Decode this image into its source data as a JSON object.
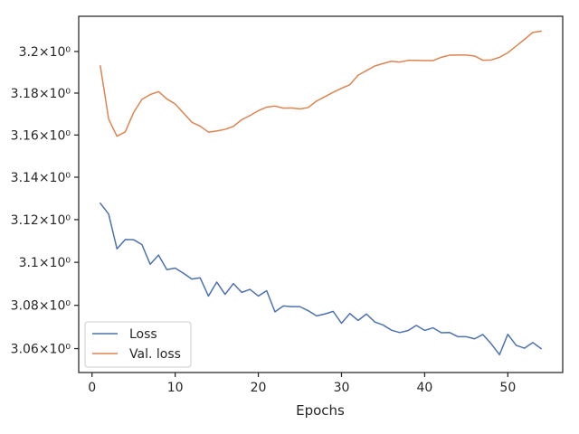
{
  "chart_data": {
    "type": "line",
    "title": "",
    "xlabel": "Epochs",
    "ylabel": "",
    "yscale": "log",
    "grid": false,
    "legend_position": "lower-left",
    "xlim": [
      -1.6,
      56.6
    ],
    "ylim": [
      3.049,
      3.217
    ],
    "x_ticks": [
      {
        "value": 0,
        "label": "0"
      },
      {
        "value": 10,
        "label": "10"
      },
      {
        "value": 20,
        "label": "20"
      },
      {
        "value": 30,
        "label": "30"
      },
      {
        "value": 40,
        "label": "40"
      },
      {
        "value": 50,
        "label": "50"
      }
    ],
    "y_ticks": [
      {
        "value": 3.06,
        "label": "3.06×10⁰"
      },
      {
        "value": 3.08,
        "label": "3.08×10⁰"
      },
      {
        "value": 3.1,
        "label": "3.1×10⁰"
      },
      {
        "value": 3.12,
        "label": "3.12×10⁰"
      },
      {
        "value": 3.14,
        "label": "3.14×10⁰"
      },
      {
        "value": 3.16,
        "label": "3.16×10⁰"
      },
      {
        "value": 3.18,
        "label": "3.18×10⁰"
      },
      {
        "value": 3.2,
        "label": "3.2×10⁰"
      }
    ],
    "x": [
      1,
      2,
      3,
      4,
      5,
      6,
      7,
      8,
      9,
      10,
      11,
      12,
      13,
      14,
      15,
      16,
      17,
      18,
      19,
      20,
      21,
      22,
      23,
      24,
      25,
      26,
      27,
      28,
      29,
      30,
      31,
      32,
      33,
      34,
      35,
      36,
      37,
      38,
      39,
      40,
      41,
      42,
      43,
      44,
      45,
      46,
      47,
      48,
      49,
      50,
      51,
      52,
      53,
      54
    ],
    "series": [
      {
        "name": "Loss",
        "color": "#4c72b0",
        "values": [
          3.1277,
          3.1226,
          3.1063,
          3.1107,
          3.1106,
          3.1083,
          3.0991,
          3.1034,
          3.0966,
          3.0973,
          3.0949,
          3.0922,
          3.0928,
          3.0843,
          3.0908,
          3.0851,
          3.0901,
          3.086,
          3.0874,
          3.0843,
          3.0868,
          3.077,
          3.0797,
          3.0794,
          3.0794,
          3.0775,
          3.0751,
          3.076,
          3.0772,
          3.0717,
          3.0762,
          3.073,
          3.076,
          3.0723,
          3.0709,
          3.0685,
          3.0674,
          3.0683,
          3.0707,
          3.0684,
          3.0696,
          3.0673,
          3.0674,
          3.0655,
          3.0655,
          3.0645,
          3.0665,
          3.0622,
          3.0572,
          3.0666,
          3.0615,
          3.0602,
          3.0628,
          3.06
        ]
      },
      {
        "name": "Val. loss",
        "color": "#dd8452",
        "values": [
          3.193,
          3.1676,
          3.1594,
          3.1615,
          3.1707,
          3.177,
          3.1793,
          3.1807,
          3.1772,
          3.1748,
          3.1705,
          3.1661,
          3.1642,
          3.1614,
          3.1619,
          3.1627,
          3.1641,
          3.1673,
          3.1693,
          3.1716,
          3.1733,
          3.1738,
          3.1728,
          3.1729,
          3.1724,
          3.1731,
          3.1762,
          3.1783,
          3.1804,
          3.1823,
          3.184,
          3.1886,
          3.1908,
          3.193,
          3.1942,
          3.1953,
          3.1949,
          3.1957,
          3.1957,
          3.1956,
          3.1956,
          3.1972,
          3.1982,
          3.1983,
          3.1983,
          3.1978,
          3.1958,
          3.1959,
          3.1972,
          3.1994,
          3.2026,
          3.2058,
          3.2092,
          3.2098
        ]
      }
    ]
  }
}
